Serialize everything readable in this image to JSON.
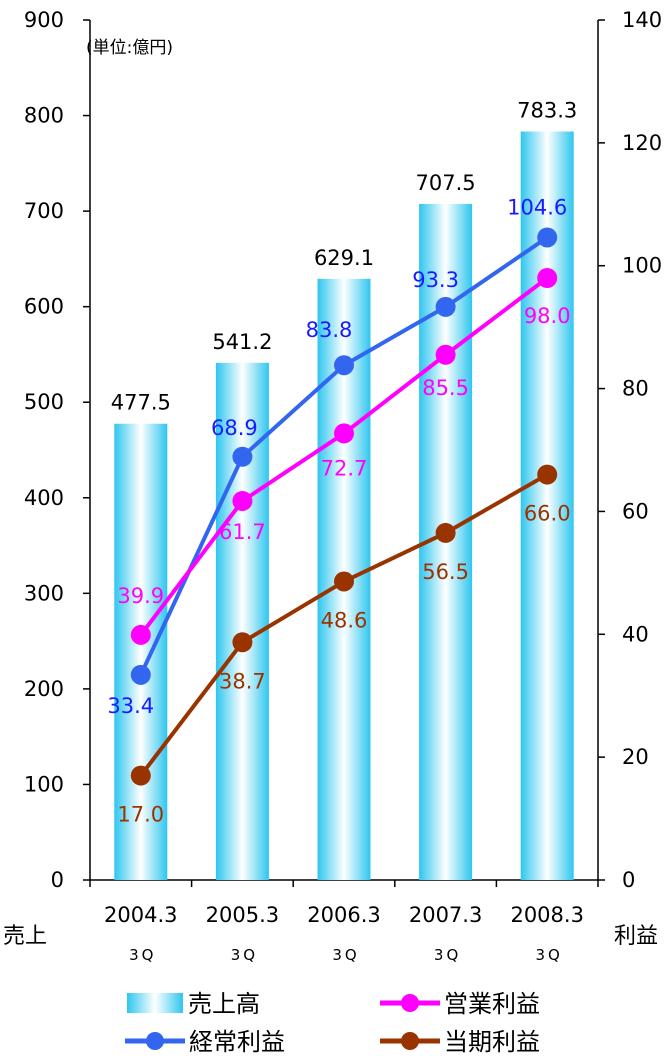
{
  "chart_data": {
    "type": "bar+line",
    "unit_label": "(単位:億円)",
    "categories": [
      "2004.3",
      "2005.3",
      "2006.3",
      "2007.3",
      "2008.3"
    ],
    "sub_labels": [
      "3Q",
      "3Q",
      "3Q",
      "3Q",
      "3Q"
    ],
    "left_axis": {
      "label": "売上",
      "min": 0,
      "max": 900,
      "ticks": [
        "0",
        "100",
        "200",
        "300",
        "400",
        "500",
        "600",
        "700",
        "800",
        "900"
      ]
    },
    "right_axis": {
      "label": "利益",
      "min": 0,
      "max": 140,
      "ticks": [
        "0",
        "20",
        "40",
        "60",
        "80",
        "100",
        "120",
        "140"
      ]
    },
    "bar_series": {
      "name": "売上高",
      "values": [
        477.5,
        541.2,
        629.1,
        707.5,
        783.3
      ],
      "labels": [
        "477.5",
        "541.2",
        "629.1",
        "707.5",
        "783.3"
      ],
      "color": "#33ccf0"
    },
    "line_series": [
      {
        "name": "経常利益",
        "color": "#3366ee",
        "label_color": "#1a1aff",
        "values": [
          33.4,
          68.9,
          83.8,
          93.3,
          104.6
        ],
        "labels": [
          "33.4",
          "68.9",
          "83.8",
          "93.3",
          "104.6"
        ]
      },
      {
        "name": "営業利益",
        "color": "#ff00ff",
        "label_color": "#ff00ff",
        "values": [
          39.9,
          61.7,
          72.7,
          85.5,
          98.0
        ],
        "labels": [
          "39.9",
          "61.7",
          "72.7",
          "85.5",
          "98.0"
        ]
      },
      {
        "name": "当期利益",
        "color": "#993300",
        "label_color": "#993300",
        "values": [
          17.0,
          38.7,
          48.6,
          56.5,
          66.0
        ],
        "labels": [
          "17.0",
          "38.7",
          "48.6",
          "56.5",
          "66.0"
        ]
      }
    ],
    "legend_order": [
      "売上高",
      "営業利益",
      "経常利益",
      "当期利益"
    ],
    "legend_placement": "bottom",
    "grid": false
  }
}
